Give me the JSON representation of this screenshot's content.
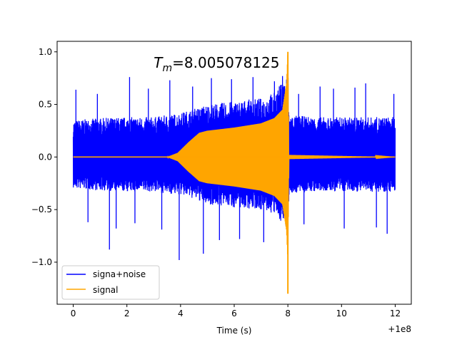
{
  "chart_data": {
    "type": "line",
    "xlabel": "Time (s)",
    "ylabel": "",
    "x_offset_label": "+1e8",
    "xlim": [
      -0.6,
      12.6
    ],
    "ylim": [
      -1.4,
      1.1
    ],
    "xticks": [
      0,
      2,
      4,
      6,
      8,
      10,
      12
    ],
    "yticks": [
      -1.0,
      -0.5,
      0.0,
      0.5,
      1.0
    ],
    "xtick_labels": [
      "0",
      "2",
      "4",
      "6",
      "8",
      "10",
      "12"
    ],
    "ytick_labels": [
      "−1.0",
      "−0.5",
      "0.0",
      "0.5",
      "1.0"
    ],
    "annotation": {
      "prefix": "T",
      "subscript": "m",
      "value": "=8.005078125",
      "x": 3.0,
      "y": 0.78
    },
    "grid": false,
    "legend_position": "lower-left",
    "series": [
      {
        "name": "signa+noise",
        "color": "#0000ff",
        "x_range": [
          0,
          12
        ],
        "envelope": [
          [
            0,
            -0.3,
            0.35
          ],
          [
            1,
            -0.32,
            0.37
          ],
          [
            2,
            -0.33,
            0.38
          ],
          [
            3,
            -0.33,
            0.38
          ],
          [
            3.5,
            -0.35,
            0.4
          ],
          [
            4,
            -0.36,
            0.42
          ],
          [
            4.5,
            -0.4,
            0.46
          ],
          [
            5,
            -0.45,
            0.5
          ],
          [
            6,
            -0.48,
            0.53
          ],
          [
            7,
            -0.5,
            0.56
          ],
          [
            7.5,
            -0.55,
            0.62
          ],
          [
            7.9,
            -0.65,
            0.75
          ],
          [
            8.0,
            -0.7,
            0.8
          ],
          [
            8.05,
            -0.35,
            0.4
          ],
          [
            9,
            -0.33,
            0.38
          ],
          [
            10,
            -0.33,
            0.38
          ],
          [
            11,
            -0.33,
            0.38
          ],
          [
            12,
            -0.33,
            0.38
          ]
        ],
        "spikes": [
          [
            0.1,
            0.64
          ],
          [
            0.55,
            -0.62
          ],
          [
            0.9,
            0.6
          ],
          [
            1.35,
            -0.88
          ],
          [
            1.6,
            -0.68
          ],
          [
            2.1,
            0.76
          ],
          [
            2.3,
            -0.63
          ],
          [
            2.8,
            0.65
          ],
          [
            3.3,
            -0.69
          ],
          [
            3.6,
            0.73
          ],
          [
            3.95,
            -0.98
          ],
          [
            4.45,
            0.67
          ],
          [
            4.85,
            -0.92
          ],
          [
            5.15,
            0.75
          ],
          [
            5.45,
            -0.79
          ],
          [
            5.9,
            0.74
          ],
          [
            6.2,
            -0.78
          ],
          [
            6.7,
            0.76
          ],
          [
            7.1,
            -0.81
          ],
          [
            7.5,
            0.72
          ],
          [
            7.8,
            0.77
          ],
          [
            8.4,
            0.6
          ],
          [
            8.6,
            -0.64
          ],
          [
            9.2,
            0.67
          ],
          [
            9.7,
            0.65
          ],
          [
            10.1,
            -0.68
          ],
          [
            10.5,
            0.66
          ],
          [
            10.9,
            0.7
          ],
          [
            11.3,
            -0.67
          ],
          [
            11.7,
            -0.73
          ],
          [
            11.95,
            0.6
          ]
        ]
      },
      {
        "name": "signal",
        "color": "#ffa500",
        "x_range": [
          0,
          12
        ],
        "amplitude": [
          [
            0,
            0
          ],
          [
            3.5,
            0.0
          ],
          [
            3.9,
            0.04
          ],
          [
            4.3,
            0.14
          ],
          [
            4.7,
            0.23
          ],
          [
            5.0,
            0.25
          ],
          [
            6.0,
            0.28
          ],
          [
            7.0,
            0.32
          ],
          [
            7.5,
            0.37
          ],
          [
            7.8,
            0.45
          ],
          [
            7.95,
            0.7
          ],
          [
            8.0,
            1.0
          ],
          [
            8.04,
            0.02
          ],
          [
            12,
            0.0
          ]
        ],
        "min_value": -1.3,
        "max_value": 1.0
      }
    ]
  }
}
